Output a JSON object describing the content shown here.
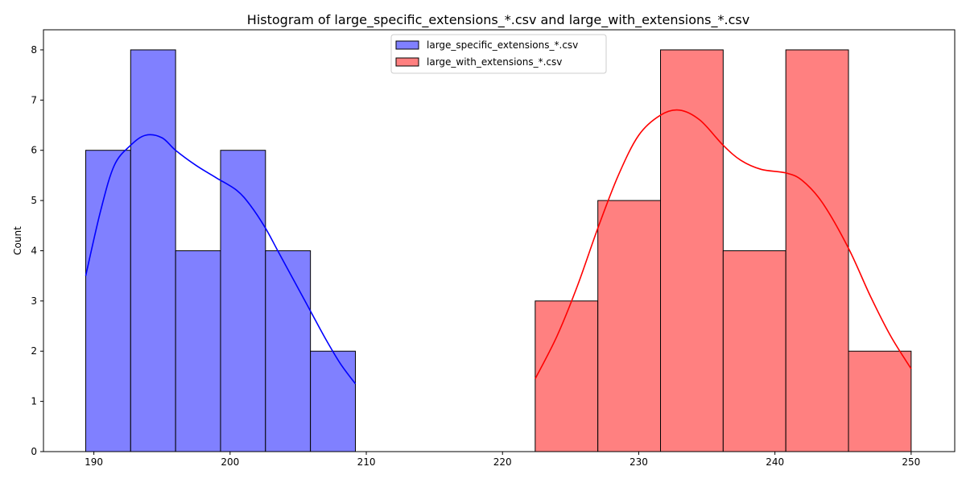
{
  "chart_data": {
    "type": "histogram",
    "title": "Histogram of large_specific_extensions_*.csv and large_with_extensions_*.csv",
    "xlabel": "",
    "ylabel": "Count",
    "xlim": [
      186.3,
      253.2
    ],
    "ylim": [
      0,
      8.4
    ],
    "xticks": [
      190,
      200,
      210,
      220,
      230,
      240,
      250
    ],
    "yticks": [
      0,
      1,
      2,
      3,
      4,
      5,
      6,
      7,
      8
    ],
    "grid": false,
    "legend": "top-center",
    "series": [
      {
        "name": "large_specific_extensions_*.csv",
        "fill": "#8080ff",
        "line": "#0000ff",
        "bin_edges": [
          189.4,
          192.7,
          196.0,
          199.3,
          202.6,
          205.9,
          209.2
        ],
        "counts": [
          6,
          8,
          4,
          6,
          4,
          2
        ],
        "kde": [
          [
            189.4,
            3.5
          ],
          [
            190.5,
            4.8
          ],
          [
            191.5,
            5.7
          ],
          [
            192.7,
            6.1
          ],
          [
            193.8,
            6.3
          ],
          [
            195.0,
            6.25
          ],
          [
            196.0,
            6.0
          ],
          [
            197.5,
            5.7
          ],
          [
            199.0,
            5.45
          ],
          [
            200.5,
            5.2
          ],
          [
            201.5,
            4.9
          ],
          [
            202.6,
            4.45
          ],
          [
            203.5,
            4.0
          ],
          [
            204.7,
            3.4
          ],
          [
            205.9,
            2.8
          ],
          [
            207.0,
            2.25
          ],
          [
            208.1,
            1.75
          ],
          [
            209.2,
            1.35
          ]
        ]
      },
      {
        "name": "large_with_extensions_*.csv",
        "fill": "#ff8080",
        "line": "#ff0000",
        "bin_edges": [
          222.4,
          227.0,
          231.6,
          236.2,
          240.8,
          245.4,
          250.0
        ],
        "counts": [
          3,
          5,
          8,
          4,
          8,
          2
        ],
        "kde": [
          [
            222.4,
            1.45
          ],
          [
            224.0,
            2.3
          ],
          [
            225.5,
            3.3
          ],
          [
            227.0,
            4.45
          ],
          [
            228.5,
            5.5
          ],
          [
            230.0,
            6.3
          ],
          [
            231.6,
            6.7
          ],
          [
            233.0,
            6.8
          ],
          [
            234.5,
            6.6
          ],
          [
            236.2,
            6.1
          ],
          [
            237.5,
            5.8
          ],
          [
            239.0,
            5.62
          ],
          [
            240.8,
            5.55
          ],
          [
            242.0,
            5.4
          ],
          [
            243.5,
            4.95
          ],
          [
            245.4,
            4.05
          ],
          [
            247.0,
            3.1
          ],
          [
            248.5,
            2.3
          ],
          [
            250.0,
            1.65
          ]
        ]
      }
    ]
  }
}
